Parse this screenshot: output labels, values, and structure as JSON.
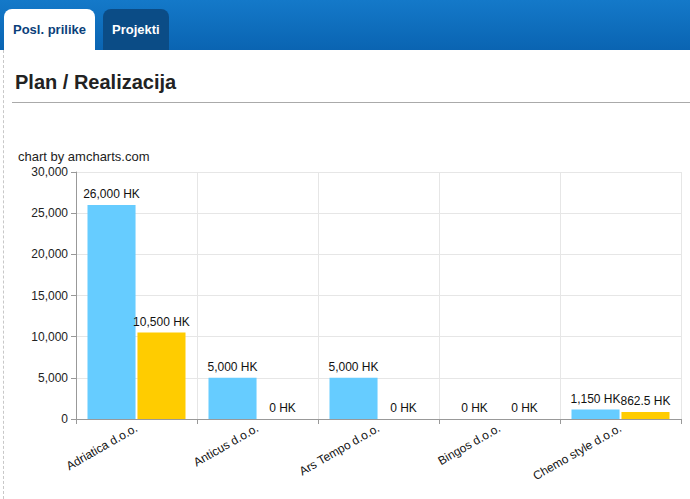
{
  "tabs": [
    "Posl. prilike",
    "Projekti"
  ],
  "heading": "Plan / Realizacija",
  "credit": "chart by amcharts.com",
  "chart_data": {
    "type": "bar",
    "categories": [
      "Adriatica d.o.o.",
      "Anticus d.o.o.",
      "Ars Tempo d.o.o.",
      "Bingos d.o.o.",
      "Chemo style d.o.o."
    ],
    "series": [
      {
        "color": "#66ccff",
        "values": [
          26000,
          5000,
          5000,
          0,
          1150
        ],
        "value_labels": [
          "26,000 HK",
          "5,000 HK",
          "5,000 HK",
          "0 HK",
          "1,150 HK"
        ]
      },
      {
        "color": "#ffcc00",
        "values": [
          10500,
          0,
          0,
          0,
          862.5
        ],
        "value_labels": [
          "10,500 HK",
          "0 HK",
          "0 HK",
          "0 HK",
          "862.5 HK"
        ]
      }
    ],
    "ylim": [
      0,
      30000
    ],
    "yticks": [
      0,
      {
        "value": 5000,
        "label": "5,000"
      },
      {
        "value": 10000,
        "label": "10,000"
      },
      {
        "value": 15000,
        "label": "15,000"
      },
      {
        "value": 20000,
        "label": "20,000"
      },
      {
        "value": 25000,
        "label": "25,000"
      },
      {
        "value": 30000,
        "label": "30,000"
      }
    ],
    "grid": true,
    "data_labels": true
  }
}
